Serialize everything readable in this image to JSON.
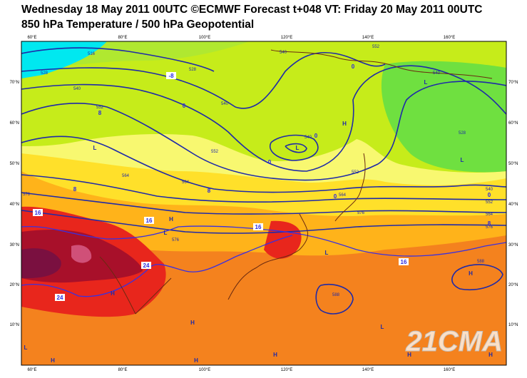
{
  "title": {
    "line1": "Wednesday 18 May 2011 00UTC ©ECMWF Forecast t+048 VT: Friday 20 May 2011 00UTC",
    "line2": "850 hPa Temperature / 500 hPa Geopotential"
  },
  "longitude_labels": [
    "60°E",
    "80°E",
    "100°E",
    "120°E",
    "140°E",
    "160°E"
  ],
  "latitude_labels": [
    "70°N",
    "60°N",
    "50°N",
    "40°N",
    "30°N",
    "20°N",
    "10°N"
  ],
  "geopotential_labels": [
    "516",
    "528",
    "540",
    "552",
    "528",
    "540",
    "552",
    "564",
    "576",
    "564",
    "540",
    "552",
    "540",
    "528",
    "540",
    "552",
    "564",
    "576",
    "552",
    "564",
    "576",
    "576",
    "588",
    "588",
    "540"
  ],
  "temperature_labels": [
    "-8",
    "0",
    "8",
    "0",
    "8",
    "8",
    "0",
    "0",
    "0",
    "0",
    "16",
    "16",
    "16",
    "16",
    "24",
    "24",
    "8"
  ],
  "centers": [
    "L",
    "L",
    "H",
    "L",
    "L",
    "H",
    "L",
    "H",
    "L",
    "H",
    "H",
    "L",
    "H",
    "H",
    "L",
    "H",
    "H",
    "H"
  ],
  "watermark": "21CMA"
}
